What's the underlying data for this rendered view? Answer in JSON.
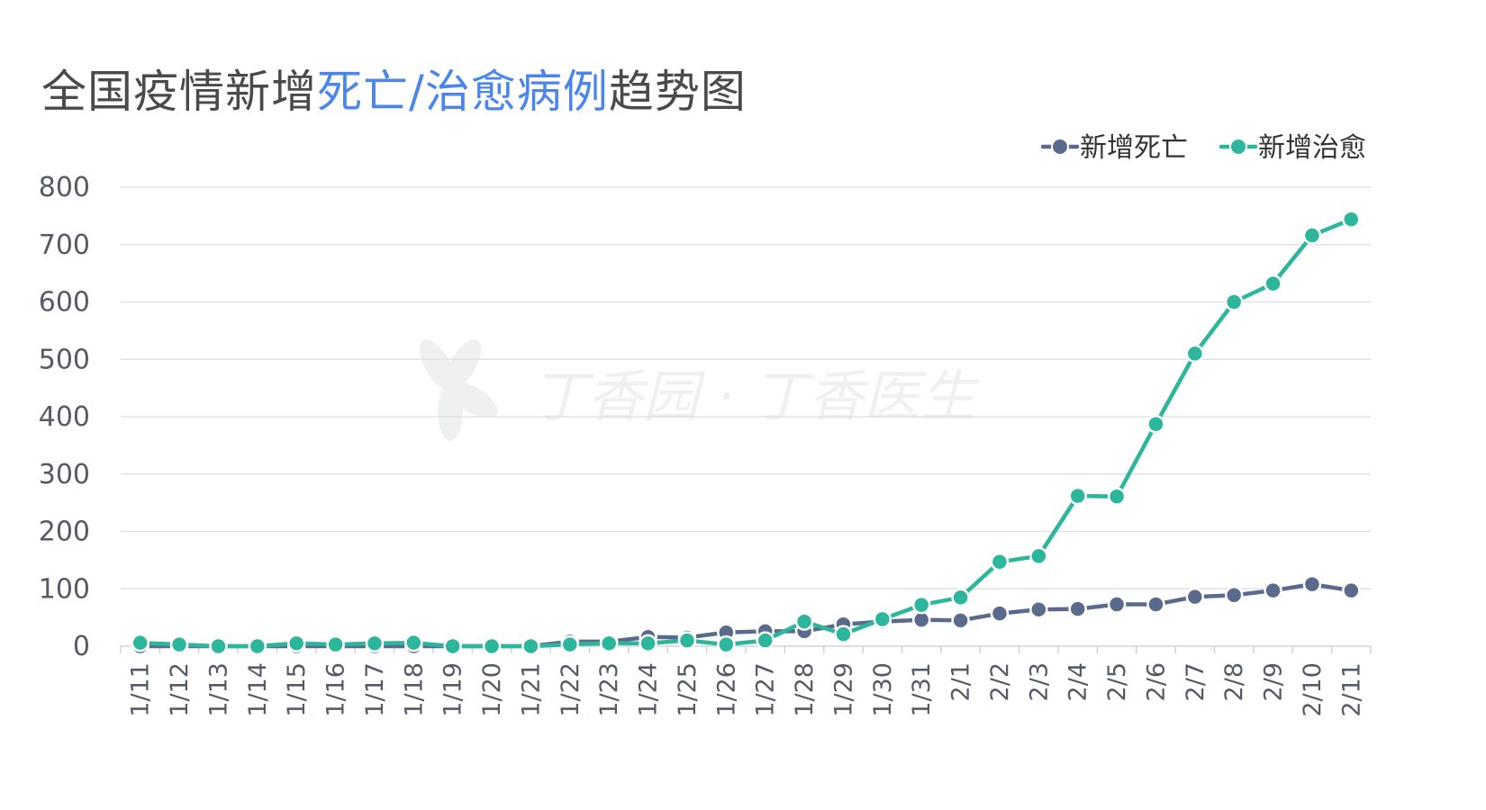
{
  "title": {
    "part1": "全国疫情新增",
    "part2": "死亡/治愈病例",
    "part3": "趋势图"
  },
  "watermark": {
    "text": "丁香园 · 丁香医生",
    "icon": "clover-leaf-icon"
  },
  "colors": {
    "title_text": "#4a4a4a",
    "title_highlight": "#4a86ee",
    "deaths": "#5a6a8c",
    "recovered": "#2cb79d",
    "grid": "#dfe2e6",
    "axis_text": "#555b66",
    "watermark": "#eef1ef"
  },
  "chart_data": {
    "type": "line",
    "categories": [
      "1/11",
      "1/12",
      "1/13",
      "1/14",
      "1/15",
      "1/16",
      "1/17",
      "1/18",
      "1/19",
      "1/20",
      "1/21",
      "1/22",
      "1/23",
      "1/24",
      "1/25",
      "1/26",
      "1/27",
      "1/28",
      "1/29",
      "1/30",
      "1/31",
      "2/1",
      "2/2",
      "2/3",
      "2/4",
      "2/5",
      "2/6",
      "2/7",
      "2/8",
      "2/9",
      "2/10",
      "2/11"
    ],
    "series": [
      {
        "name": "新增死亡",
        "color": "#5a6a8c",
        "values": [
          0,
          0,
          0,
          0,
          0,
          0,
          0,
          0,
          0,
          0,
          0,
          8,
          8,
          16,
          15,
          24,
          26,
          26,
          38,
          43,
          46,
          45,
          57,
          64,
          65,
          73,
          73,
          86,
          89,
          97,
          108,
          97
        ]
      },
      {
        "name": "新增治愈",
        "color": "#2cb79d",
        "values": [
          6,
          3,
          0,
          0,
          5,
          3,
          5,
          6,
          0,
          0,
          0,
          3,
          5,
          5,
          10,
          3,
          10,
          43,
          21,
          47,
          72,
          85,
          147,
          157,
          262,
          261,
          387,
          510,
          600,
          632,
          716,
          744
        ]
      }
    ],
    "ylim": [
      0,
      800
    ],
    "yticks": [
      0,
      100,
      200,
      300,
      400,
      500,
      600,
      700,
      800
    ],
    "grid": true,
    "legend_position": "top-right",
    "xlabel": "",
    "ylabel": ""
  }
}
